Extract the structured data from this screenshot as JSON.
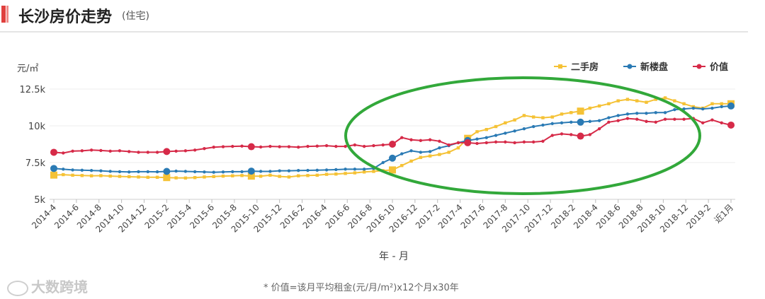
{
  "header": {
    "title": "长沙房价走势",
    "subtitle": "(住宅)"
  },
  "footnote": "* 价值=该月平均租金(元/月/m²)x12个月x30年",
  "watermark": "大数跨境",
  "chart_data": {
    "type": "line",
    "ylabel": "元/㎡",
    "xlabel": "年 - 月",
    "ylim": [
      5000,
      12500
    ],
    "yticks": [
      5000,
      7500,
      10000,
      12500
    ],
    "ytick_labels": [
      "5k",
      "7.5k",
      "10k",
      "12.5k"
    ],
    "grid": true,
    "legend_position": "top-right",
    "x_tick_labels": [
      "2014-4",
      "2014-6",
      "2014-8",
      "2014-10",
      "2014-12",
      "2015-2",
      "2015-4",
      "2015-6",
      "2015-8",
      "2015-10",
      "2015-12",
      "2016-2",
      "2016-4",
      "2016-6",
      "2016-8",
      "2016-10",
      "2016-12",
      "2017-2",
      "2017-4",
      "2017-6",
      "2017-8",
      "2017-10",
      "2017-12",
      "2018-2",
      "2018-4",
      "2018-6",
      "2018-8",
      "2018-10",
      "2018-12",
      "2019-2",
      "近1月"
    ],
    "series": [
      {
        "name": "二手房",
        "color": "#f5c236",
        "values": [
          6650,
          6680,
          6640,
          6620,
          6600,
          6610,
          6580,
          6560,
          6540,
          6520,
          6500,
          6500,
          6480,
          6460,
          6450,
          6480,
          6520,
          6550,
          6580,
          6600,
          6620,
          6580,
          6570,
          6640,
          6560,
          6520,
          6600,
          6620,
          6640,
          6700,
          6720,
          6760,
          6800,
          6860,
          6900,
          6950,
          7000,
          7300,
          7600,
          7850,
          7950,
          8050,
          8200,
          8500,
          9150,
          9600,
          9750,
          9950,
          10200,
          10400,
          10700,
          10600,
          10550,
          10600,
          10800,
          10900,
          11000,
          11200,
          11350,
          11500,
          11700,
          11800,
          11700,
          11600,
          11800,
          11900,
          11700,
          11500,
          11300,
          11200,
          11500,
          11500,
          11500
        ],
        "markers": [
          0,
          12,
          21,
          36,
          44,
          56
        ]
      },
      {
        "name": "新楼盘",
        "color": "#2a7ab4",
        "values": [
          7100,
          7050,
          7000,
          6980,
          6960,
          6940,
          6900,
          6880,
          6860,
          6880,
          6880,
          6870,
          6900,
          6920,
          6900,
          6880,
          6860,
          6840,
          6860,
          6880,
          6880,
          6920,
          6900,
          6900,
          6940,
          6940,
          6960,
          6970,
          6980,
          7000,
          7020,
          7050,
          7050,
          7050,
          7100,
          7500,
          7800,
          8100,
          8300,
          8200,
          8250,
          8500,
          8650,
          8850,
          9000,
          9100,
          9200,
          9350,
          9500,
          9650,
          9800,
          9950,
          10050,
          10150,
          10200,
          10250,
          10250,
          10300,
          10350,
          10550,
          10700,
          10800,
          10850,
          10850,
          10900,
          10900,
          11100,
          11150,
          11200,
          11150,
          11200,
          11300,
          11350
        ],
        "markers": [
          0,
          12,
          21,
          36,
          44,
          56
        ]
      },
      {
        "name": "价值",
        "color": "#d62a48",
        "values": [
          8200,
          8150,
          8280,
          8300,
          8350,
          8320,
          8280,
          8300,
          8250,
          8200,
          8200,
          8200,
          8250,
          8280,
          8300,
          8350,
          8450,
          8550,
          8580,
          8600,
          8620,
          8580,
          8560,
          8600,
          8580,
          8580,
          8550,
          8600,
          8620,
          8650,
          8600,
          8600,
          8700,
          8600,
          8650,
          8700,
          8750,
          9200,
          9050,
          9000,
          9050,
          8950,
          8700,
          8850,
          8850,
          8800,
          8850,
          8900,
          8900,
          8850,
          8900,
          8900,
          8950,
          9350,
          9450,
          9400,
          9300,
          9400,
          9800,
          10250,
          10350,
          10500,
          10450,
          10300,
          10250,
          10450,
          10450,
          10450,
          10500,
          10200,
          10400,
          10200,
          10050
        ],
        "markers": [
          0,
          12,
          21,
          36,
          44,
          56
        ]
      }
    ],
    "annotation": {
      "type": "ellipse",
      "color": "#32a83a"
    }
  }
}
